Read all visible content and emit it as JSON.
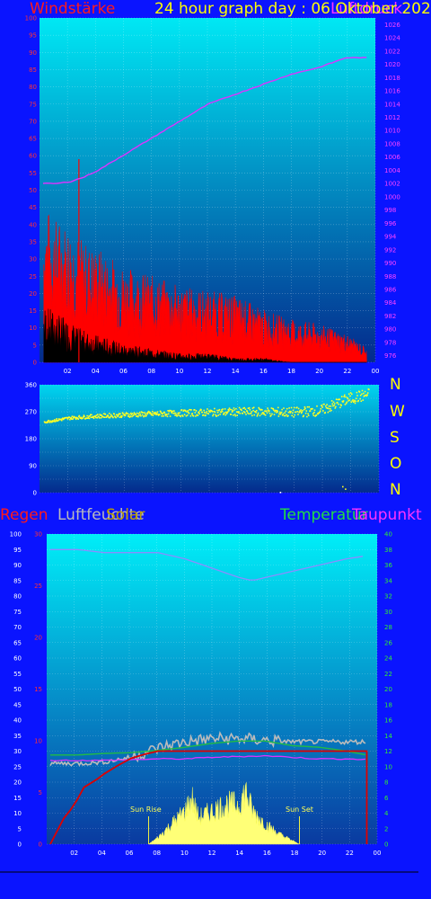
{
  "header": {
    "title": "24 hour graph day : 06 Oktober 202",
    "wind_label": "Windstärke",
    "pressure_label": "Luftdruck",
    "title_color": "#ffff00",
    "wind_color": "#ff1a1a",
    "pressure_color": "#ff33ff"
  },
  "compass": {
    "letters": [
      "N",
      "W",
      "S",
      "O",
      "N"
    ],
    "color": "#ffff00"
  },
  "lower_header": {
    "rain_label": "Regen",
    "humidity_label": "Luftfeuchte",
    "solar_label": "Solar",
    "temp_label": "Temperatur",
    "dew_label": "Taupunkt",
    "rain_color": "#ff1a1a",
    "humidity_color": "#bbbbbb",
    "solar_color": "#bba000",
    "temp_color": "#22dd44",
    "dew_color": "#ff33ff"
  },
  "annotations": {
    "sunrise": "Sun Rise",
    "sunset": "Sun Set"
  },
  "chart_data": [
    {
      "type": "line",
      "x_ticks": [
        "02",
        "04",
        "06",
        "08",
        "10",
        "12",
        "14",
        "16",
        "18",
        "20",
        "22",
        "00"
      ],
      "y_left_ticks": [
        "0",
        "5",
        "10",
        "15",
        "20",
        "25",
        "30",
        "35",
        "40",
        "45",
        "50",
        "55",
        "60",
        "65",
        "70",
        "75",
        "80",
        "85",
        "90",
        "95",
        "100"
      ],
      "y_right_ticks": [
        "976",
        "978",
        "980",
        "982",
        "984",
        "986",
        "988",
        "990",
        "992",
        "994",
        "996",
        "998",
        "1000",
        "1002",
        "1004",
        "1006",
        "1008",
        "1010",
        "1012",
        "1014",
        "1016",
        "1018",
        "1020",
        "1022",
        "1024",
        "1026"
      ],
      "ylim_left": [
        0,
        100
      ],
      "ylim_right": [
        975,
        1027
      ],
      "grid": true,
      "series": [
        {
          "role": "pressure",
          "color": "#dd33ff",
          "x": [
            0,
            1,
            2,
            3,
            4,
            6,
            8,
            10,
            12,
            14,
            16,
            18,
            20,
            22,
            23.5
          ],
          "values": [
            1002,
            1002,
            1002.3,
            1003,
            1004,
            1006.5,
            1009,
            1011.5,
            1014,
            1015.5,
            1017,
            1018.5,
            1019.5,
            1021,
            1021
          ]
        },
        {
          "role": "gust",
          "color": "#ff0000",
          "x": [
            0,
            1,
            2,
            3,
            4,
            6,
            8,
            10,
            12,
            14,
            16,
            18,
            20,
            22,
            23.5
          ],
          "values": [
            33,
            30,
            29,
            25,
            24,
            20,
            18,
            16,
            15,
            14,
            11,
            9,
            8,
            6,
            3
          ]
        },
        {
          "role": "mean_wind",
          "color": "#000000",
          "x": [
            0,
            1,
            2,
            3,
            4,
            6,
            8,
            10,
            12,
            14,
            16,
            18,
            20,
            22,
            23.5
          ],
          "values": [
            13,
            11,
            9,
            7,
            6,
            4,
            3,
            2,
            2,
            1,
            1,
            0,
            0,
            0,
            0
          ]
        }
      ]
    },
    {
      "type": "scatter",
      "x_ticks": [],
      "y_ticks": [
        "0",
        "90",
        "180",
        "270",
        "360"
      ],
      "ylim": [
        0,
        360
      ],
      "grid": true,
      "series": [
        {
          "role": "wind_direction",
          "color": "#ffff22",
          "x": [
            0,
            2,
            4,
            6,
            8,
            10,
            12,
            14,
            16,
            18,
            20,
            22,
            23.5
          ],
          "values": [
            238,
            252,
            258,
            262,
            265,
            268,
            270,
            272,
            272,
            270,
            276,
            315,
            330
          ]
        }
      ]
    },
    {
      "type": "line",
      "x_ticks": [
        "02",
        "04",
        "06",
        "08",
        "10",
        "12",
        "14",
        "16",
        "18",
        "20",
        "22",
        "00"
      ],
      "y_left_outer_ticks": [
        "0",
        "5",
        "10",
        "15",
        "20",
        "25",
        "30",
        "35",
        "40",
        "45",
        "50",
        "55",
        "60",
        "65",
        "70",
        "75",
        "80",
        "85",
        "90",
        "95",
        "100"
      ],
      "y_left_inner_ticks": [
        "0",
        "5",
        "10",
        "15",
        "20",
        "25",
        "30"
      ],
      "y_right_ticks": [
        "0",
        "2",
        "4",
        "6",
        "8",
        "10",
        "12",
        "14",
        "16",
        "18",
        "20",
        "22",
        "24",
        "26",
        "28",
        "30",
        "32",
        "34",
        "36",
        "38",
        "40"
      ],
      "ylim_left_outer": [
        0,
        100
      ],
      "ylim_left_inner": [
        0,
        30
      ],
      "ylim_right": [
        0,
        40
      ],
      "grid": true,
      "series": [
        {
          "role": "humidity",
          "color": "#8c8cff",
          "x": [
            0,
            2,
            4,
            6,
            8,
            10,
            12,
            14,
            15,
            16,
            18,
            20,
            22,
            23.5
          ],
          "values": [
            95,
            95,
            94,
            94,
            94,
            92,
            89,
            86,
            85,
            86,
            88,
            90,
            92,
            93
          ]
        },
        {
          "role": "temperature",
          "color": "#22bb44",
          "x": [
            0,
            2,
            4,
            6,
            8,
            10,
            12,
            14,
            16,
            18,
            20,
            22,
            23.5
          ],
          "values": [
            11.5,
            11.5,
            11.7,
            11.8,
            12.1,
            12.5,
            13,
            13.3,
            13.3,
            12.7,
            12.5,
            12,
            11.5
          ]
        },
        {
          "role": "dew_point",
          "color": "#dd33ff",
          "x": [
            0,
            2,
            4,
            6,
            8,
            10,
            12,
            14,
            16,
            18,
            20,
            22,
            23.5
          ],
          "values": [
            10.8,
            10.8,
            10.8,
            10.9,
            11,
            11,
            11.2,
            11.3,
            11.4,
            11.2,
            11,
            11,
            10.9
          ]
        },
        {
          "role": "rain",
          "color": "#dd0000",
          "x": [
            0,
            1,
            1.5,
            2,
            2.5,
            3.5,
            4,
            5,
            6,
            7,
            8,
            23.5
          ],
          "values": [
            0,
            2.5,
            3.3,
            4.3,
            5.5,
            6.3,
            6.8,
            7.6,
            8.3,
            8.7,
            9,
            9
          ]
        },
        {
          "role": "solar_humidity_trace",
          "color": "#bbbbbb",
          "x": [
            0,
            2,
            4,
            6,
            8,
            10,
            12,
            14,
            16,
            18,
            20,
            22,
            23.5
          ],
          "values": [
            26,
            26,
            26.5,
            28,
            31,
            33,
            34,
            34,
            33.5,
            33,
            33,
            33,
            33
          ]
        },
        {
          "role": "solar",
          "color": "#ffff66",
          "x": [
            7.3,
            8,
            9,
            10,
            10.5,
            11,
            12,
            13,
            14,
            14.5,
            15,
            16,
            17,
            18.5
          ],
          "values": [
            0,
            1,
            3,
            5,
            7,
            4,
            5,
            6,
            6,
            8,
            5,
            3,
            1.5,
            0
          ]
        }
      ]
    }
  ]
}
